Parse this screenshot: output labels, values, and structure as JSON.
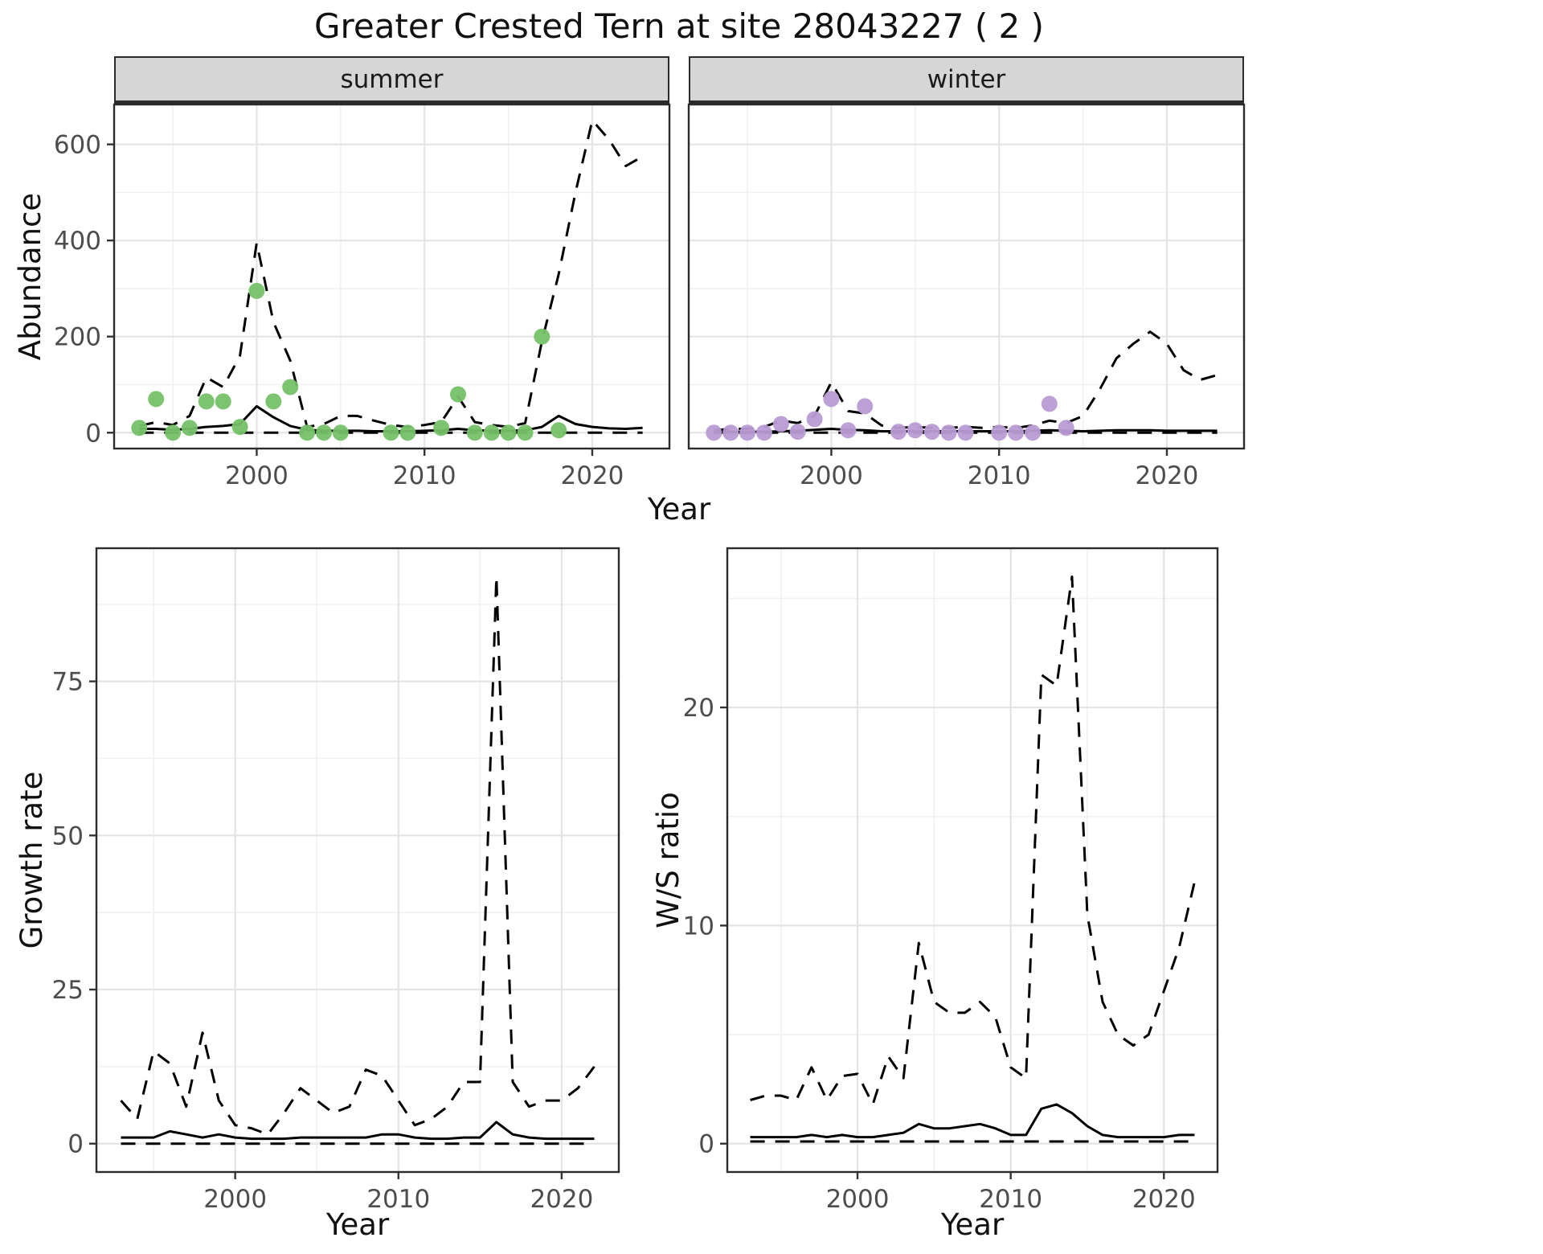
{
  "title": "Greater Crested Tern at site 28043227 ( 2 )",
  "facets": [
    {
      "label": "summer"
    },
    {
      "label": "winter"
    }
  ],
  "axes": {
    "abundance": "Abundance",
    "year": "Year",
    "growth_rate": "Growth rate",
    "ws_ratio": "W/S ratio"
  },
  "colors": {
    "summer_point": "#76c168",
    "winter_point": "#b99bd3",
    "line": "#000000",
    "strip_bg": "#d6d6d6",
    "grid_major": "#e4e4e4",
    "grid_minor": "#f1f1f1",
    "tick_label": "#4d4d4d"
  },
  "chart_data": [
    {
      "type": "line",
      "title": "summer",
      "xlabel": "Year",
      "ylabel": "Abundance",
      "xlim": [
        1991.5,
        2024.6
      ],
      "ylim": [
        -33,
        683
      ],
      "xticks": [
        2000,
        2010,
        2020
      ],
      "yticks": [
        0,
        200,
        400,
        600
      ],
      "xminor": [
        1995,
        2005,
        2015
      ],
      "yminor": [
        100,
        300,
        500
      ],
      "grid": true,
      "legend": "none",
      "x": [
        1993,
        1994,
        1995,
        1996,
        1997,
        1998,
        1999,
        2000,
        2001,
        2002,
        2003,
        2004,
        2005,
        2006,
        2007,
        2008,
        2009,
        2010,
        2011,
        2012,
        2013,
        2014,
        2015,
        2016,
        2017,
        2018,
        2019,
        2020,
        2021,
        2022,
        2023
      ],
      "series": [
        {
          "name": "fit",
          "style": "solid",
          "values": [
            8,
            8,
            6,
            8,
            12,
            14,
            18,
            55,
            32,
            14,
            6,
            4,
            4,
            4,
            3,
            3,
            3,
            4,
            5,
            8,
            5,
            4,
            4,
            5,
            12,
            35,
            18,
            12,
            9,
            8,
            10
          ]
        },
        {
          "name": "upper_ci",
          "style": "dashed",
          "values": [
            14,
            22,
            16,
            35,
            115,
            95,
            160,
            395,
            230,
            150,
            12,
            18,
            35,
            35,
            25,
            16,
            12,
            16,
            22,
            75,
            22,
            16,
            12,
            20,
            190,
            330,
            500,
            650,
            610,
            555,
            575
          ]
        },
        {
          "name": "lower_ci",
          "style": "dashed",
          "values": [
            0,
            0,
            0,
            0,
            0,
            0,
            0,
            0,
            0,
            0,
            0,
            0,
            0,
            0,
            0,
            0,
            0,
            0,
            0,
            0,
            0,
            0,
            0,
            0,
            0,
            0,
            0,
            0,
            0,
            0,
            0
          ]
        }
      ],
      "points": {
        "name": "observations",
        "color_key": "summer_point",
        "x": [
          1993,
          1994,
          1995,
          1996,
          1997,
          1998,
          1999,
          2000,
          2001,
          2002,
          2003,
          2004,
          2005,
          2008,
          2009,
          2011,
          2012,
          2013,
          2014,
          2015,
          2016,
          2017,
          2018
        ],
        "y": [
          10,
          70,
          0,
          10,
          65,
          65,
          12,
          295,
          65,
          95,
          0,
          0,
          0,
          0,
          0,
          10,
          80,
          0,
          0,
          0,
          0,
          200,
          5
        ]
      }
    },
    {
      "type": "line",
      "title": "winter",
      "xlabel": "Year",
      "ylabel": "Abundance",
      "xlim": [
        1991.5,
        2024.6
      ],
      "ylim": [
        -33,
        683
      ],
      "xticks": [
        2000,
        2010,
        2020
      ],
      "yticks": [
        0,
        200,
        400,
        600
      ],
      "xminor": [
        1995,
        2005,
        2015
      ],
      "yminor": [
        100,
        300,
        500
      ],
      "grid": true,
      "legend": "none",
      "x": [
        1993,
        1994,
        1995,
        1996,
        1997,
        1998,
        1999,
        2000,
        2001,
        2002,
        2003,
        2004,
        2005,
        2006,
        2007,
        2008,
        2009,
        2010,
        2011,
        2012,
        2013,
        2014,
        2015,
        2016,
        2017,
        2018,
        2019,
        2020,
        2021,
        2022,
        2023
      ],
      "series": [
        {
          "name": "fit",
          "style": "solid",
          "values": [
            2,
            2,
            2,
            2,
            3,
            4,
            6,
            8,
            6,
            5,
            3,
            3,
            3,
            3,
            3,
            3,
            3,
            3,
            3,
            4,
            5,
            4,
            3,
            4,
            5,
            5,
            5,
            4,
            4,
            4,
            4
          ]
        },
        {
          "name": "upper_ci",
          "style": "dashed",
          "values": [
            5,
            8,
            8,
            12,
            25,
            20,
            35,
            105,
            45,
            40,
            15,
            10,
            12,
            10,
            10,
            12,
            10,
            12,
            10,
            15,
            25,
            20,
            35,
            90,
            155,
            185,
            210,
            185,
            130,
            110,
            120
          ]
        },
        {
          "name": "lower_ci",
          "style": "dashed",
          "values": [
            0,
            0,
            0,
            0,
            0,
            0,
            0,
            0,
            0,
            0,
            0,
            0,
            0,
            0,
            0,
            0,
            0,
            0,
            0,
            0,
            0,
            0,
            0,
            0,
            0,
            0,
            0,
            0,
            0,
            0,
            0
          ]
        }
      ],
      "points": {
        "name": "observations",
        "color_key": "winter_point",
        "x": [
          1993,
          1994,
          1995,
          1996,
          1997,
          1998,
          1999,
          2000,
          2001,
          2002,
          2004,
          2005,
          2006,
          2007,
          2008,
          2010,
          2011,
          2012,
          2013,
          2014
        ],
        "y": [
          0,
          0,
          0,
          0,
          18,
          2,
          28,
          70,
          5,
          55,
          2,
          5,
          2,
          0,
          0,
          0,
          0,
          0,
          60,
          10
        ]
      }
    },
    {
      "type": "line",
      "title": "Growth rate",
      "xlabel": "Year",
      "ylabel": "Growth rate",
      "xlim": [
        1991.5,
        2023.5
      ],
      "ylim": [
        -4.6,
        96.6
      ],
      "xticks": [
        2000,
        2010,
        2020
      ],
      "yticks": [
        0,
        25,
        50,
        75
      ],
      "xminor": [
        1995,
        2005,
        2015
      ],
      "yminor": [
        12.5,
        37.5,
        62.5,
        87.5
      ],
      "grid": true,
      "legend": "none",
      "x": [
        1993,
        1994,
        1995,
        1996,
        1997,
        1998,
        1999,
        2000,
        2001,
        2002,
        2003,
        2004,
        2005,
        2006,
        2007,
        2008,
        2009,
        2010,
        2011,
        2012,
        2013,
        2014,
        2015,
        2016,
        2017,
        2018,
        2019,
        2020,
        2021,
        2022
      ],
      "series": [
        {
          "name": "fit",
          "style": "solid",
          "values": [
            1,
            1,
            1,
            2,
            1.5,
            1,
            1.5,
            1,
            0.8,
            0.8,
            0.8,
            1,
            1,
            1,
            1,
            1,
            1.5,
            1.5,
            1,
            0.8,
            0.8,
            1,
            1,
            3.5,
            1.5,
            1,
            0.8,
            0.8,
            0.8,
            0.8
          ]
        },
        {
          "name": "upper_ci",
          "style": "dashed",
          "values": [
            7,
            4,
            15,
            13,
            6,
            18,
            7,
            3,
            2.5,
            1.5,
            5,
            9,
            7,
            5,
            6,
            12,
            11,
            7,
            3,
            4,
            6,
            10,
            10,
            92,
            10,
            6,
            7,
            7,
            9,
            12.5
          ]
        },
        {
          "name": "lower_ci",
          "style": "dashed",
          "values": [
            0,
            0,
            0,
            0,
            0,
            0,
            0,
            0,
            0,
            0,
            0,
            0,
            0,
            0,
            0,
            0,
            0,
            0,
            0,
            0,
            0,
            0,
            0,
            0,
            0,
            0,
            0,
            0,
            0,
            0
          ]
        }
      ]
    },
    {
      "type": "line",
      "title": "W/S ratio",
      "xlabel": "Year",
      "ylabel": "W/S ratio",
      "xlim": [
        1991.5,
        2023.5
      ],
      "ylim": [
        -1.3,
        27.3
      ],
      "xticks": [
        2000,
        2010,
        2020
      ],
      "yticks": [
        0,
        10,
        20
      ],
      "xminor": [
        1995,
        2005,
        2015
      ],
      "yminor": [
        5,
        15,
        25
      ],
      "grid": true,
      "legend": "none",
      "x": [
        1993,
        1994,
        1995,
        1996,
        1997,
        1998,
        1999,
        2000,
        2001,
        2002,
        2003,
        2004,
        2005,
        2006,
        2007,
        2008,
        2009,
        2010,
        2011,
        2012,
        2013,
        2014,
        2015,
        2016,
        2017,
        2018,
        2019,
        2020,
        2021,
        2022
      ],
      "series": [
        {
          "name": "fit",
          "style": "solid",
          "values": [
            0.3,
            0.3,
            0.3,
            0.3,
            0.4,
            0.3,
            0.4,
            0.3,
            0.3,
            0.4,
            0.5,
            0.9,
            0.7,
            0.7,
            0.8,
            0.9,
            0.7,
            0.4,
            0.4,
            1.6,
            1.8,
            1.4,
            0.8,
            0.4,
            0.3,
            0.3,
            0.3,
            0.3,
            0.4,
            0.4
          ]
        },
        {
          "name": "upper_ci",
          "style": "dashed",
          "values": [
            2,
            2.2,
            2.2,
            2,
            3.5,
            2,
            3.1,
            3.2,
            1.8,
            4,
            3,
            9.2,
            6.5,
            6,
            6,
            6.5,
            5.8,
            3.5,
            3,
            21.5,
            21,
            26,
            10.5,
            6.5,
            5,
            4.5,
            5,
            7,
            9,
            12
          ]
        },
        {
          "name": "lower_ci",
          "style": "dashed",
          "values": [
            0.1,
            0.1,
            0.1,
            0.1,
            0.1,
            0.1,
            0.1,
            0.1,
            0.1,
            0.1,
            0.1,
            0.1,
            0.1,
            0.1,
            0.1,
            0.1,
            0.1,
            0.1,
            0.1,
            0.1,
            0.1,
            0.1,
            0.1,
            0.1,
            0.1,
            0.1,
            0.1,
            0.1,
            0.1,
            0.1
          ]
        }
      ]
    }
  ]
}
